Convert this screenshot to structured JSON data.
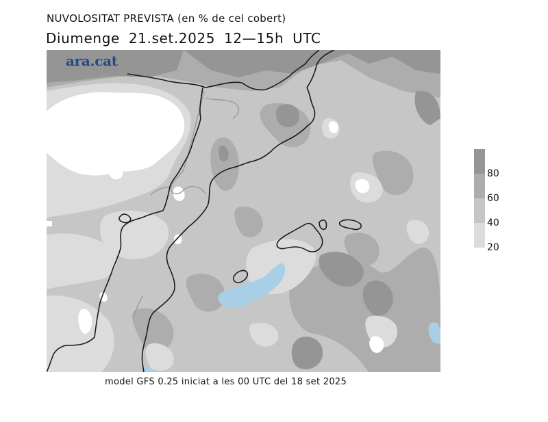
{
  "header": {
    "title": "NUVOLOSITAT PREVISTA (en % de cel cobert)",
    "subtitle": "Diumenge  21.set.2025 12—15h UTC"
  },
  "map": {
    "brand_logo": "ara.cat",
    "colors": {
      "background": "#c6c6c6",
      "cloud_0_20": "#ffffff",
      "cloud_20_40": "#dcdcdc",
      "cloud_40_60": "#c6c6c6",
      "cloud_60_80": "#adadad",
      "cloud_80_100": "#959595",
      "rain_blue": "#a9cfe6",
      "coast": "#1a1a1a",
      "border": "#9a9a9a"
    }
  },
  "legend": {
    "labels": [
      "80",
      "60",
      "40",
      "20"
    ],
    "colors": [
      "#959595",
      "#adadad",
      "#c6c6c6",
      "#dcdcdc"
    ]
  },
  "footer": {
    "text": "model GFS 0.25 iniciat a les 00 UTC del 18 set 2025"
  }
}
